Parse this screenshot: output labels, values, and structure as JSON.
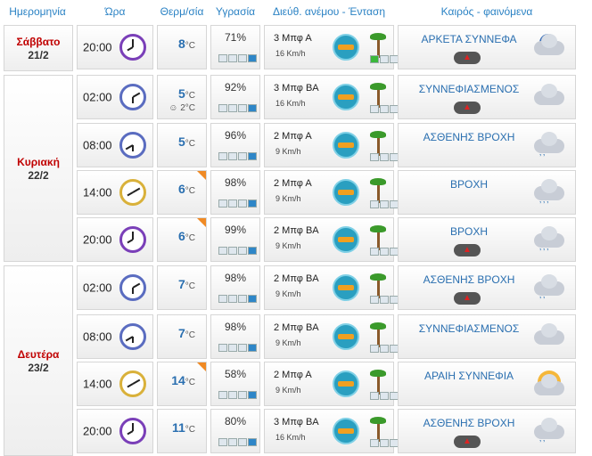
{
  "header": {
    "date": "Ημερομηνία",
    "time": "Ώρα",
    "temp": "Θερμ/σία",
    "humidity": "Υγρασία",
    "wind": "Διεύθ. ανέμου - Ένταση",
    "weather": "Καιρός - φαινόμενα"
  },
  "days": [
    {
      "name": "Σάββατο",
      "date": "21/2"
    },
    {
      "name": "Κυριακή",
      "date": "22/2"
    },
    {
      "name": "Δευτέρα",
      "date": "23/2"
    }
  ],
  "temp_unit": "°C",
  "rows": [
    {
      "time": "20:00",
      "temp": "8",
      "feels": "",
      "humidity": "71%",
      "hum_level": 1,
      "wind_text": "3 Μπφ Α",
      "wind_speed": "16 Km/h",
      "wind_level": 1,
      "weather": "ΑΡΚΕΤΑ ΣΥΝΝΕΦΑ",
      "icon": "night-cloud-icon",
      "alert": true
    },
    {
      "time": "02:00",
      "temp": "5",
      "feels": "2°C",
      "humidity": "92%",
      "hum_level": 1,
      "wind_text": "3 Μπφ ΒΑ",
      "wind_speed": "16 Km/h",
      "wind_level": 0,
      "weather": "ΣΥΝΝΕΦΙΑΣΜΕΝΟΣ",
      "icon": "cloudy-icon",
      "alert": true
    },
    {
      "time": "08:00",
      "temp": "5",
      "feels": "",
      "humidity": "96%",
      "hum_level": 1,
      "wind_text": "2 Μπφ Α",
      "wind_speed": "9 Km/h",
      "wind_level": 0,
      "weather": "ΑΣΘΕΝΗΣ ΒΡΟΧΗ",
      "icon": "light-rain-icon",
      "alert": false
    },
    {
      "time": "14:00",
      "temp": "6",
      "feels": "",
      "humidity": "98%",
      "hum_level": 1,
      "wind_text": "2 Μπφ Α",
      "wind_speed": "9 Km/h",
      "wind_level": 0,
      "weather": "ΒΡΟΧΗ",
      "icon": "rain-icon",
      "alert": false
    },
    {
      "time": "20:00",
      "temp": "6",
      "feels": "",
      "humidity": "99%",
      "hum_level": 1,
      "wind_text": "2 Μπφ ΒΑ",
      "wind_speed": "9 Km/h",
      "wind_level": 0,
      "weather": "ΒΡΟΧΗ",
      "icon": "rain-icon",
      "alert": true
    },
    {
      "time": "02:00",
      "temp": "7",
      "feels": "",
      "humidity": "98%",
      "hum_level": 1,
      "wind_text": "2 Μπφ ΒΑ",
      "wind_speed": "9 Km/h",
      "wind_level": 0,
      "weather": "ΑΣΘΕΝΗΣ ΒΡΟΧΗ",
      "icon": "light-rain-icon",
      "alert": true
    },
    {
      "time": "08:00",
      "temp": "7",
      "feels": "",
      "humidity": "98%",
      "hum_level": 1,
      "wind_text": "2 Μπφ ΒΑ",
      "wind_speed": "9 Km/h",
      "wind_level": 0,
      "weather": "ΣΥΝΝΕΦΙΑΣΜΕΝΟΣ",
      "icon": "cloudy-icon",
      "alert": false
    },
    {
      "time": "14:00",
      "temp": "14",
      "feels": "",
      "humidity": "58%",
      "hum_level": 1,
      "wind_text": "2 Μπφ Α",
      "wind_speed": "9 Km/h",
      "wind_level": 0,
      "weather": "ΑΡΑΙΗ ΣΥΝΝΕΦΙΑ",
      "icon": "sun-cloud-icon",
      "alert": false
    },
    {
      "time": "20:00",
      "temp": "11",
      "feels": "",
      "humidity": "80%",
      "hum_level": 1,
      "wind_text": "3 Μπφ ΒΑ",
      "wind_speed": "16 Km/h",
      "wind_level": 0,
      "weather": "ΑΣΘΕΝΗΣ ΒΡΟΧΗ",
      "icon": "light-rain-icon",
      "alert": true
    }
  ],
  "colors": {
    "accent": "#2a82c4",
    "day_name": "#c00000",
    "corner": "#f08a24"
  }
}
